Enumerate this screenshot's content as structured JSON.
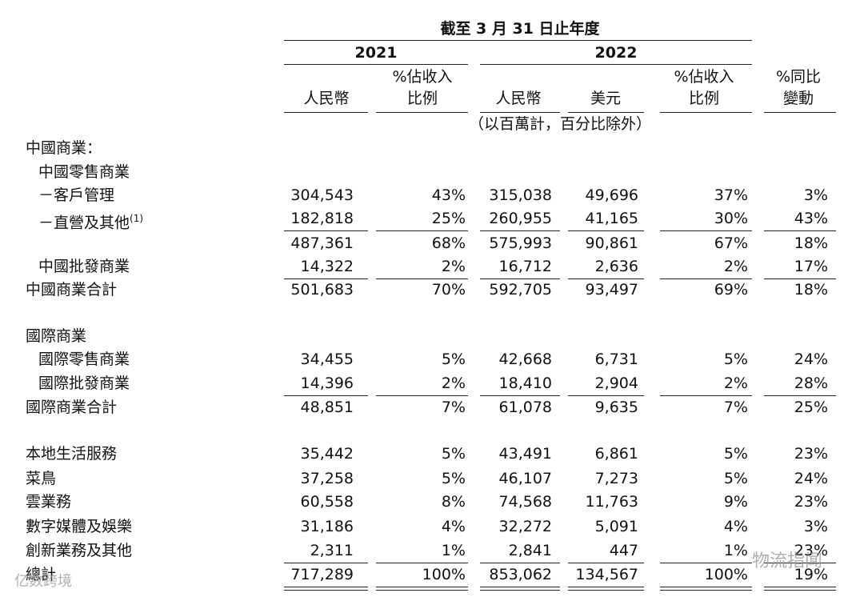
{
  "header": {
    "period": "截至 3 月 31 日止年度",
    "years": [
      "2021",
      "2022"
    ],
    "columns": [
      [
        "人民幣"
      ],
      [
        "%佔收入",
        "比例"
      ],
      [
        "人民幣"
      ],
      [
        "美元"
      ],
      [
        "%佔收入",
        "比例"
      ],
      [
        "%同比",
        "變動"
      ]
    ],
    "unit_note": "（以百萬計，百分比除外）"
  },
  "table": {
    "rows": [
      {
        "label": "中國商業："
      },
      {
        "label": "中國零售商業"
      },
      {
        "label": "－客戶管理",
        "values": [
          "304,543",
          "43%",
          "315,038",
          "49,696",
          "37%",
          "3%"
        ]
      },
      {
        "label": "－直營及其他",
        "note": "(1)",
        "values": [
          "182,818",
          "25%",
          "260,955",
          "41,165",
          "30%",
          "43%"
        ]
      },
      {
        "values": [
          "487,361",
          "68%",
          "575,993",
          "90,861",
          "67%",
          "18%"
        ]
      },
      {
        "label": "中國批發商業",
        "values": [
          "14,322",
          "2%",
          "16,712",
          "2,636",
          "2%",
          "17%"
        ]
      },
      {
        "label": "中國商業合計",
        "values": [
          "501,683",
          "70%",
          "592,705",
          "93,497",
          "69%",
          "18%"
        ]
      },
      {
        "label": "國際商業"
      },
      {
        "label": "國際零售商業",
        "values": [
          "34,455",
          "5%",
          "42,668",
          "6,731",
          "5%",
          "24%"
        ]
      },
      {
        "label": "國際批發商業",
        "values": [
          "14,396",
          "2%",
          "18,410",
          "2,904",
          "2%",
          "28%"
        ]
      },
      {
        "label": "國際商業合計",
        "values": [
          "48,851",
          "7%",
          "61,078",
          "9,635",
          "7%",
          "25%"
        ]
      },
      {
        "label": "本地生活服務",
        "values": [
          "35,442",
          "5%",
          "43,491",
          "6,861",
          "5%",
          "23%"
        ]
      },
      {
        "label": "菜鳥",
        "values": [
          "37,258",
          "5%",
          "46,107",
          "7,273",
          "5%",
          "24%"
        ]
      },
      {
        "label": "雲業務",
        "values": [
          "60,558",
          "8%",
          "74,568",
          "11,763",
          "9%",
          "23%"
        ]
      },
      {
        "label": "數字媒體及娛樂",
        "values": [
          "31,186",
          "4%",
          "32,272",
          "5,091",
          "4%",
          "3%"
        ]
      },
      {
        "label": "創新業務及其他",
        "values": [
          "2,311",
          "1%",
          "2,841",
          "447",
          "1%",
          "23%"
        ]
      },
      {
        "label": "總計",
        "values": [
          "717,289",
          "100%",
          "853,062",
          "134,567",
          "100%",
          "19%"
        ]
      }
    ]
  },
  "watermarks": [
    "物流指闻",
    "亿数跨境"
  ]
}
